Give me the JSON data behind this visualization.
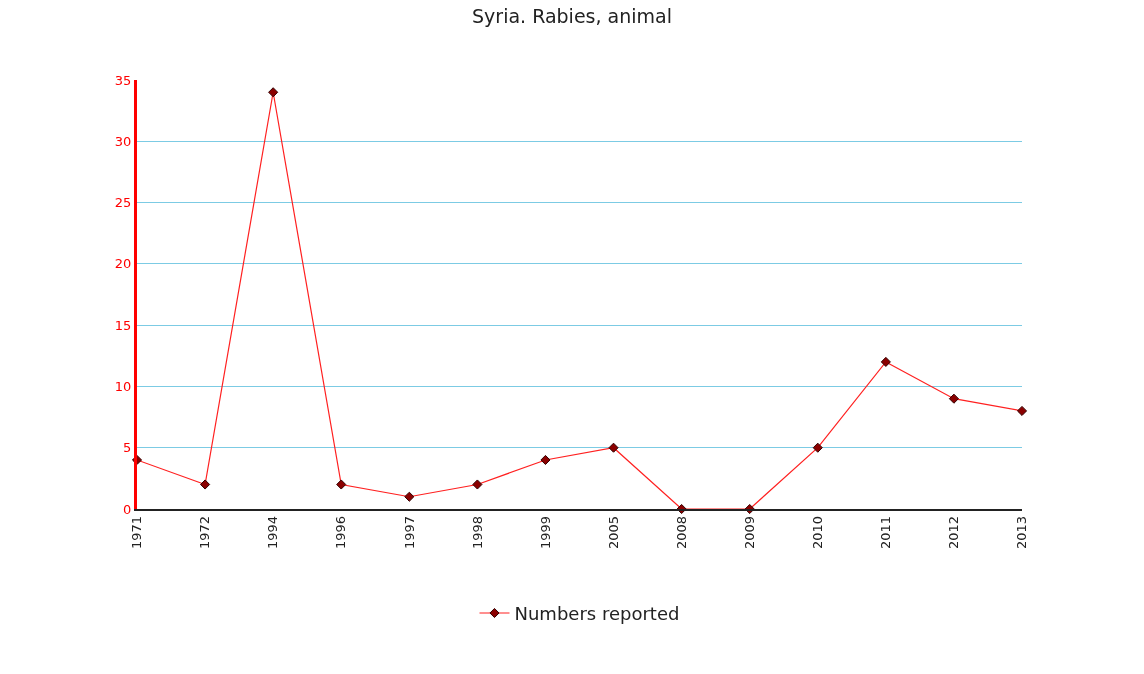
{
  "chart_data": {
    "type": "line",
    "title": "Syria. Rabies, animal",
    "categories": [
      "1971",
      "1972",
      "1994",
      "1996",
      "1997",
      "1998",
      "1999",
      "2005",
      "2008",
      "2009",
      "2010",
      "2011",
      "2012",
      "2013"
    ],
    "series": [
      {
        "name": "Numbers reported",
        "color": "#ff2020",
        "values": [
          4,
          2,
          34,
          2,
          1,
          2,
          4,
          5,
          0,
          0,
          5,
          12,
          9,
          8
        ]
      }
    ],
    "ylim": [
      0,
      35
    ],
    "yticks": [
      0,
      5,
      10,
      15,
      20,
      25,
      30,
      35
    ],
    "grid": "y",
    "legend": "bottom",
    "marker": "diamond",
    "line_style": "solid"
  }
}
